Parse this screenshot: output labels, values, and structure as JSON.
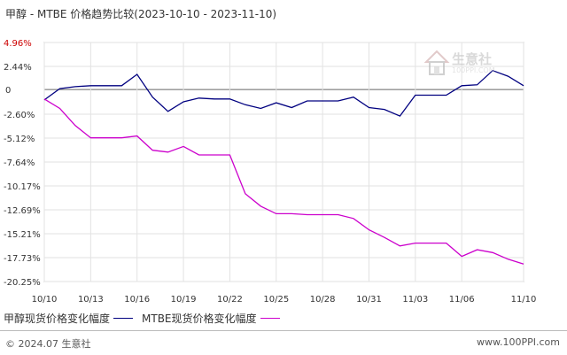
{
  "title": "甲醇 - MTBE 价格趋势比较(2023-10-10 - 2023-11-10)",
  "watermark": {
    "text": "生意社",
    "url": "100PPI.COM"
  },
  "footer": {
    "copyright": "© 2024.07 生意社",
    "site": "www.100PPI.com"
  },
  "chart_data": {
    "type": "line",
    "title": "甲醇 - MTBE 价格趋势比较(2023-10-10 - 2023-11-10)",
    "ylim": [
      -20.25,
      4.96
    ],
    "y_ticks": [
      4.96,
      2.44,
      0,
      -2.6,
      -5.12,
      -7.64,
      -10.17,
      -12.69,
      -15.21,
      -17.73,
      -20.25
    ],
    "y_tick_labels": [
      "4.96%",
      "2.44%",
      "0",
      "-2.60%",
      "-5.12%",
      "-7.64%",
      "-10.17%",
      "-12.69%",
      "-15.21%",
      "-17.73%",
      "-20.25%"
    ],
    "x_tick_labels": [
      "10/10",
      "10/13",
      "10/16",
      "10/19",
      "10/22",
      "10/25",
      "10/28",
      "10/31",
      "11/03",
      "11/06",
      "11/10"
    ],
    "x_tick_days": [
      0,
      3,
      6,
      9,
      12,
      15,
      18,
      21,
      24,
      27,
      31
    ],
    "grid": true,
    "legend_position": "bottom-left",
    "series": [
      {
        "name": "甲醇现货价格变化幅度",
        "color": "#000080",
        "points": [
          [
            0,
            -1.1
          ],
          [
            1,
            0.1
          ],
          [
            2,
            0.3
          ],
          [
            3,
            0.4
          ],
          [
            4,
            0.4
          ],
          [
            5,
            0.4
          ],
          [
            6,
            1.6
          ],
          [
            7,
            -0.8
          ],
          [
            8,
            -2.3
          ],
          [
            9,
            -1.3
          ],
          [
            10,
            -0.9
          ],
          [
            11,
            -1.0
          ],
          [
            12,
            -1.0
          ],
          [
            13,
            -1.6
          ],
          [
            14,
            -2.0
          ],
          [
            15,
            -1.4
          ],
          [
            16,
            -1.9
          ],
          [
            17,
            -1.2
          ],
          [
            18,
            -1.2
          ],
          [
            19,
            -1.2
          ],
          [
            20,
            -0.8
          ],
          [
            21,
            -1.9
          ],
          [
            22,
            -2.1
          ],
          [
            23,
            -2.8
          ],
          [
            24,
            -0.6
          ],
          [
            25,
            -0.6
          ],
          [
            26,
            -0.6
          ],
          [
            27,
            0.4
          ],
          [
            28,
            0.5
          ],
          [
            29,
            2.0
          ],
          [
            30,
            1.4
          ],
          [
            31,
            0.4
          ]
        ]
      },
      {
        "name": "MTBE现货价格变化幅度",
        "color": "#cc00cc",
        "points": [
          [
            0,
            -1.0
          ],
          [
            1,
            -2.0
          ],
          [
            2,
            -3.8
          ],
          [
            3,
            -5.1
          ],
          [
            4,
            -5.1
          ],
          [
            5,
            -5.1
          ],
          [
            6,
            -4.9
          ],
          [
            7,
            -6.4
          ],
          [
            8,
            -6.6
          ],
          [
            9,
            -6.0
          ],
          [
            10,
            -6.9
          ],
          [
            11,
            -6.9
          ],
          [
            12,
            -6.9
          ],
          [
            13,
            -11.0
          ],
          [
            14,
            -12.3
          ],
          [
            15,
            -13.1
          ],
          [
            16,
            -13.1
          ],
          [
            17,
            -13.2
          ],
          [
            18,
            -13.2
          ],
          [
            19,
            -13.2
          ],
          [
            20,
            -13.6
          ],
          [
            21,
            -14.8
          ],
          [
            22,
            -15.6
          ],
          [
            23,
            -16.5
          ],
          [
            24,
            -16.2
          ],
          [
            25,
            -16.2
          ],
          [
            26,
            -16.2
          ],
          [
            27,
            -17.6
          ],
          [
            28,
            -16.9
          ],
          [
            29,
            -17.2
          ],
          [
            30,
            -17.9
          ],
          [
            31,
            -18.4
          ]
        ]
      }
    ]
  }
}
